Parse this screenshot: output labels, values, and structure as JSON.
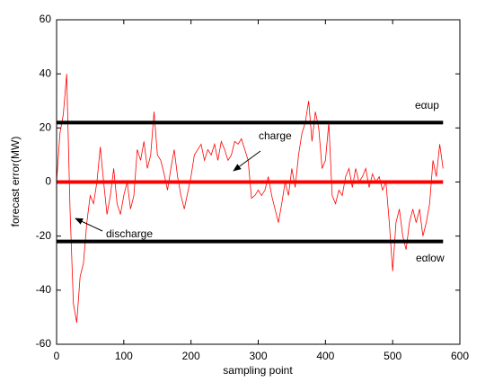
{
  "chart_data": {
    "type": "line",
    "xlabel": "sampling point",
    "ylabel": "forecast error(MW)",
    "x": [
      0,
      5,
      10,
      15,
      20,
      25,
      30,
      35,
      40,
      45,
      50,
      55,
      60,
      65,
      70,
      75,
      80,
      85,
      90,
      95,
      100,
      105,
      110,
      115,
      120,
      125,
      130,
      135,
      140,
      145,
      150,
      155,
      160,
      165,
      170,
      175,
      180,
      185,
      190,
      195,
      200,
      205,
      210,
      215,
      220,
      225,
      230,
      235,
      240,
      245,
      250,
      255,
      260,
      265,
      270,
      275,
      280,
      285,
      290,
      295,
      300,
      305,
      310,
      315,
      320,
      325,
      330,
      335,
      340,
      345,
      350,
      355,
      360,
      365,
      370,
      375,
      380,
      385,
      390,
      395,
      400,
      405,
      410,
      415,
      420,
      425,
      430,
      435,
      440,
      445,
      450,
      455,
      460,
      465,
      470,
      475,
      480,
      485,
      490,
      495,
      500,
      505,
      510,
      515,
      520,
      525,
      530,
      535,
      540,
      545,
      550,
      555,
      560,
      565,
      570,
      575
    ],
    "series": [
      {
        "color": "#ff0000",
        "values": [
          0,
          18,
          25,
          40,
          -10,
          -45,
          -52,
          -35,
          -30,
          -15,
          -5,
          -8,
          0,
          13,
          0,
          -12,
          -5,
          5,
          -8,
          -12,
          -5,
          0,
          -10,
          -5,
          12,
          8,
          15,
          5,
          10,
          26,
          10,
          8,
          3,
          -3,
          5,
          12,
          2,
          -5,
          -10,
          -4,
          2,
          10,
          12,
          14,
          8,
          12,
          10,
          14,
          8,
          15,
          12,
          8,
          10,
          15,
          14,
          16,
          12,
          8,
          -6,
          -5,
          -3,
          -5,
          -3,
          2,
          -5,
          -10,
          -15,
          -8,
          0,
          -5,
          5,
          -2,
          10,
          18,
          22,
          30,
          15,
          26,
          20,
          5,
          8,
          22,
          -5,
          -8,
          -3,
          -5,
          2,
          5,
          -2,
          5,
          0,
          2,
          5,
          -2,
          3,
          0,
          2,
          -3,
          0,
          -15,
          -33,
          -15,
          -10,
          -20,
          -25,
          -15,
          -10,
          -15,
          -10,
          -20,
          -15,
          -8,
          8,
          2,
          14,
          5
        ]
      }
    ],
    "hlines": [
      {
        "y": 22,
        "color": "#000000"
      },
      {
        "y": 0,
        "color": "#ff0000"
      },
      {
        "y": -22,
        "color": "#000000"
      }
    ],
    "annotations": {
      "up": "eαup",
      "low": "eαlow",
      "charge": "charge",
      "discharge": "discharge"
    },
    "xlim": [
      0,
      600
    ],
    "xticks": [
      0,
      100,
      200,
      300,
      400,
      500,
      600
    ],
    "ylim": [
      -60,
      60
    ],
    "yticks": [
      -60,
      -40,
      -20,
      0,
      20,
      40,
      60
    ],
    "grid": false
  }
}
